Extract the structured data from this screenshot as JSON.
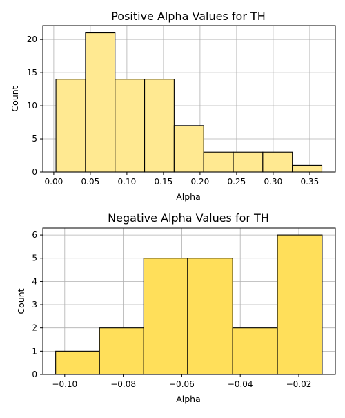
{
  "chart_data": [
    {
      "type": "bar",
      "title": "Positive Alpha Values for TH",
      "xlabel": "Alpha",
      "ylabel": "Count",
      "xlim": [
        -0.015,
        0.385
      ],
      "ylim": [
        0,
        22.1
      ],
      "xticks": [
        0.0,
        0.05,
        0.1,
        0.15,
        0.2,
        0.25,
        0.3,
        0.35
      ],
      "xtick_labels": [
        "0.00",
        "0.05",
        "0.10",
        "0.15",
        "0.20",
        "0.25",
        "0.30",
        "0.35"
      ],
      "yticks": [
        0,
        5,
        10,
        15,
        20
      ],
      "ytick_labels": [
        "0",
        "5",
        "10",
        "15",
        "20"
      ],
      "bin_edges": [
        0.003,
        0.0434,
        0.0838,
        0.1242,
        0.1646,
        0.205,
        0.2454,
        0.2858,
        0.3262,
        0.3666
      ],
      "values": [
        14,
        21,
        14,
        14,
        7,
        3,
        3,
        3,
        1
      ],
      "color": "#ffe991",
      "edge_color": "#000000",
      "grid": true
    },
    {
      "type": "bar",
      "title": "Negative Alpha Values for TH",
      "xlabel": "Alpha",
      "ylabel": "Count",
      "xlim": [
        -0.1075,
        -0.0075
      ],
      "ylim": [
        0,
        6.3
      ],
      "xticks": [
        -0.1,
        -0.08,
        -0.06,
        -0.04,
        -0.02
      ],
      "xtick_labels": [
        "−0.10",
        "−0.08",
        "−0.06",
        "−0.04",
        "−0.02"
      ],
      "yticks": [
        0,
        1,
        2,
        3,
        4,
        5,
        6
      ],
      "ytick_labels": [
        "0",
        "1",
        "2",
        "3",
        "4",
        "5",
        "6"
      ],
      "bin_edges": [
        -0.1031,
        -0.0881,
        -0.073,
        -0.058,
        -0.0426,
        -0.0273,
        -0.012
      ],
      "values": [
        1,
        2,
        5,
        5,
        2,
        6
      ],
      "color": "#ffdf5a",
      "edge_color": "#000000",
      "grid": true
    }
  ]
}
